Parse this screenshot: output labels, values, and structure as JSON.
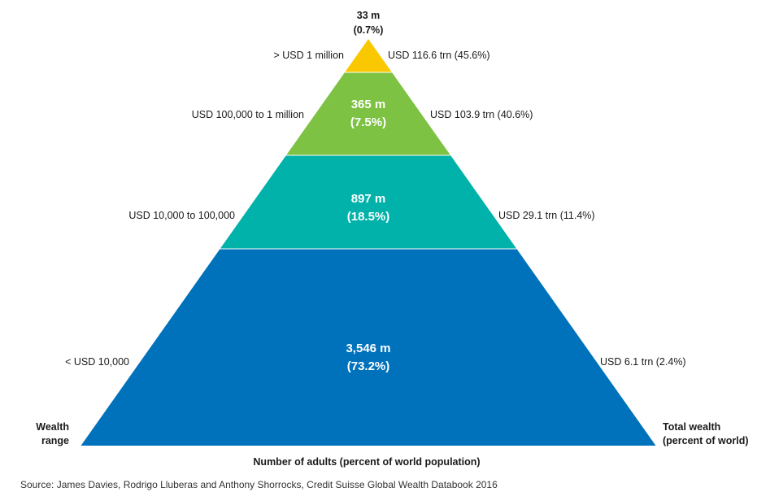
{
  "chart_data": {
    "type": "pyramid",
    "tiers": [
      {
        "adults": "33 m",
        "share": "(0.7%)",
        "range": "> USD 1 million",
        "wealth": "USD 116.6 trn (45.6%)",
        "color": "#F9C800",
        "adults_m": 33,
        "pop_pct": 0.7,
        "wealth_trn": 116.6,
        "wealth_pct": 45.6
      },
      {
        "adults": "365 m",
        "share": "(7.5%)",
        "range": "USD 100,000 to 1 million",
        "wealth": "USD 103.9 trn (40.6%)",
        "color": "#7DC242",
        "adults_m": 365,
        "pop_pct": 7.5,
        "wealth_trn": 103.9,
        "wealth_pct": 40.6
      },
      {
        "adults": "897 m",
        "share": "(18.5%)",
        "range": "USD 10,000 to 100,000",
        "wealth": "USD 29.1 trn (11.4%)",
        "color": "#00B2A9",
        "adults_m": 897,
        "pop_pct": 18.5,
        "wealth_trn": 29.1,
        "wealth_pct": 11.4
      },
      {
        "adults": "3,546 m",
        "share": "(73.2%)",
        "range": "< USD 10,000",
        "wealth": "USD 6.1 trn (2.4%)",
        "color": "#0072BC",
        "adults_m": 3546,
        "pop_pct": 73.2,
        "wealth_trn": 6.1,
        "wealth_pct": 2.4
      }
    ],
    "left_axis_label": [
      "Wealth",
      "range"
    ],
    "right_axis_label": [
      "Total wealth",
      "(percent of world)"
    ],
    "bottom_axis_label": "Number of adults (percent of world population)"
  },
  "source": "Source: James Davies, Rodrigo Lluberas and Anthony Shorrocks, Credit Suisse Global Wealth Databook 2016"
}
